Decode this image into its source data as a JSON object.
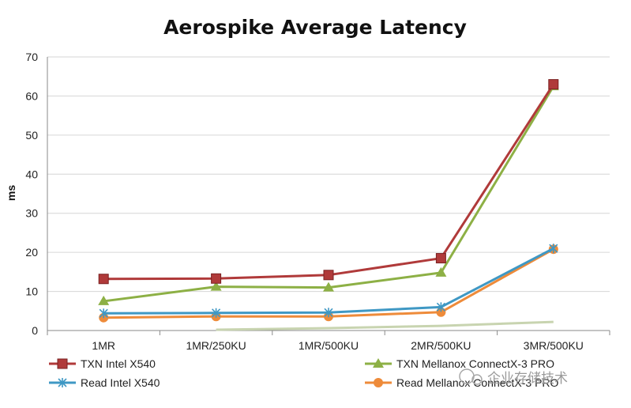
{
  "chart_data": {
    "type": "line",
    "title": "Aerospike Average Latency",
    "xlabel": "",
    "ylabel": "ms",
    "ylim": [
      0,
      70
    ],
    "yticks": [
      0,
      10,
      20,
      30,
      40,
      50,
      60,
      70
    ],
    "grid": true,
    "legend": "bottom",
    "categories": [
      "1MR",
      "1MR/250KU",
      "1MR/500KU",
      "2MR/500KU",
      "3MR/500KU"
    ],
    "series": [
      {
        "name": "TXN Intel X540",
        "values": [
          13.2,
          13.3,
          14.2,
          18.5,
          63.0
        ],
        "color": "#b03a3a",
        "marker": "square"
      },
      {
        "name": "TXN Mellanox ConnectX-3 PRO",
        "values": [
          7.5,
          11.2,
          11.0,
          14.8,
          62.5
        ],
        "color": "#8db045",
        "marker": "triangle"
      },
      {
        "name": "Read Intel X540",
        "values": [
          4.4,
          4.5,
          4.6,
          6.0,
          21.0
        ],
        "color": "#3f98c4",
        "marker": "star"
      },
      {
        "name": "Read Mellanox ConnectX-3 PRO",
        "values": [
          3.3,
          3.6,
          3.6,
          4.7,
          20.8
        ],
        "color": "#ee8b3a",
        "marker": "circle"
      }
    ],
    "faint_line": {
      "x_start_index": 1,
      "values": [
        0.2,
        0.6,
        1.2,
        2.2
      ],
      "color": "#c8d4b0"
    }
  },
  "watermark": "企业存储技术"
}
